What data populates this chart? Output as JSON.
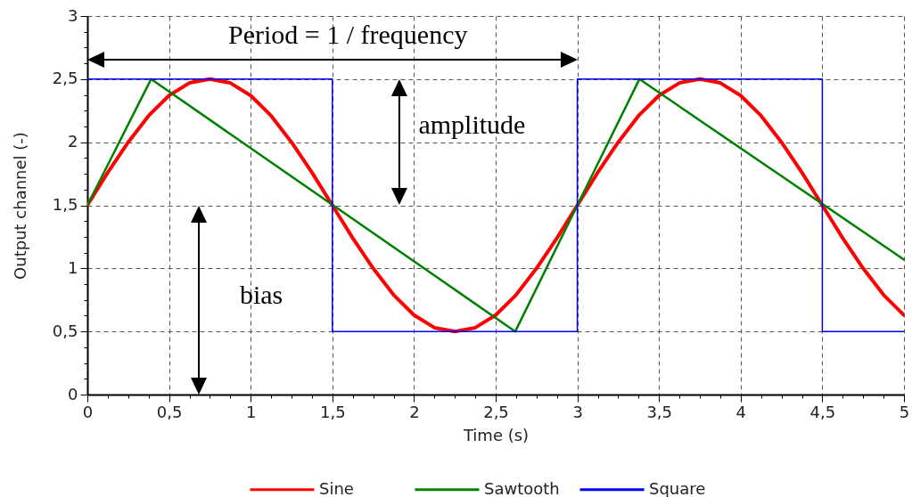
{
  "chart_data": {
    "type": "line",
    "xlabel": "Time (s)",
    "ylabel": "Output channel (-)",
    "annotations": [
      "Period = 1 / frequency",
      "amplitude",
      "bias"
    ],
    "xlim": [
      0,
      5
    ],
    "ylim": [
      0,
      3
    ],
    "xticks": [
      0,
      {
        "value": 0.125,
        "label": null
      },
      {
        "value": 0.25,
        "label": null
      },
      {
        "value": 0.375,
        "label": null
      },
      {
        "value": 0.5,
        "label": "0,5"
      },
      {
        "value": 0.625,
        "label": null
      },
      {
        "value": 0.75,
        "label": null
      },
      {
        "value": 0.875,
        "label": null
      },
      1,
      {
        "value": 1.125,
        "label": null
      },
      {
        "value": 1.25,
        "label": null
      },
      {
        "value": 1.375,
        "label": null
      },
      {
        "value": 1.5,
        "label": "1,5"
      },
      {
        "value": 1.625,
        "label": null
      },
      {
        "value": 1.75,
        "label": null
      },
      {
        "value": 1.875,
        "label": null
      },
      2,
      {
        "value": 2.125,
        "label": null
      },
      {
        "value": 2.25,
        "label": null
      },
      {
        "value": 2.375,
        "label": null
      },
      {
        "value": 2.5,
        "label": "2,5"
      },
      {
        "value": 2.625,
        "label": null
      },
      {
        "value": 2.75,
        "label": null
      },
      {
        "value": 2.875,
        "label": null
      },
      3,
      {
        "value": 3.125,
        "label": null
      },
      {
        "value": 3.25,
        "label": null
      },
      {
        "value": 3.375,
        "label": null
      },
      {
        "value": 3.5,
        "label": "3,5"
      },
      {
        "value": 3.625,
        "label": null
      },
      {
        "value": 3.75,
        "label": null
      },
      {
        "value": 3.875,
        "label": null
      },
      4,
      {
        "value": 4.125,
        "label": null
      },
      {
        "value": 4.25,
        "label": null
      },
      {
        "value": 4.375,
        "label": null
      },
      {
        "value": 4.5,
        "label": "4,5"
      },
      {
        "value": 4.625,
        "label": null
      },
      {
        "value": 4.75,
        "label": null
      },
      {
        "value": 4.875,
        "label": null
      },
      5
    ],
    "yticks": [
      0,
      {
        "value": 0.125,
        "label": null
      },
      {
        "value": 0.25,
        "label": null
      },
      {
        "value": 0.375,
        "label": null
      },
      {
        "value": 0.5,
        "label": "0,5"
      },
      {
        "value": 0.625,
        "label": null
      },
      {
        "value": 0.75,
        "label": null
      },
      {
        "value": 0.875,
        "label": null
      },
      1,
      {
        "value": 1.125,
        "label": null
      },
      {
        "value": 1.25,
        "label": null
      },
      {
        "value": 1.375,
        "label": null
      },
      {
        "value": 1.5,
        "label": "1,5"
      },
      {
        "value": 1.625,
        "label": null
      },
      {
        "value": 1.75,
        "label": null
      },
      {
        "value": 1.875,
        "label": null
      },
      2,
      {
        "value": 2.125,
        "label": null
      },
      {
        "value": 2.25,
        "label": null
      },
      {
        "value": 2.375,
        "label": null
      },
      {
        "value": 2.5,
        "label": "2,5"
      },
      {
        "value": 2.625,
        "label": null
      },
      {
        "value": 2.75,
        "label": null
      },
      {
        "value": 2.875,
        "label": null
      },
      3
    ],
    "grid": true,
    "legend": "bottom",
    "series": [
      {
        "name": "Sine",
        "color": "#ff0000",
        "x": [
          0,
          0.125,
          0.25,
          0.375,
          0.5,
          0.625,
          0.75,
          0.875,
          1,
          1.125,
          1.25,
          1.375,
          1.5,
          1.625,
          1.75,
          1.875,
          2,
          2.125,
          2.25,
          2.375,
          2.5,
          2.625,
          2.75,
          2.875,
          3,
          3.125,
          3.25,
          3.375,
          3.5,
          3.625,
          3.75,
          3.875,
          4,
          4.125,
          4.25,
          4.375,
          4.5,
          4.625,
          4.75,
          4.875,
          5
        ],
        "values": [
          1.5,
          1.76,
          2.0,
          2.21,
          2.37,
          2.47,
          2.5,
          2.47,
          2.37,
          2.21,
          2.0,
          1.76,
          1.5,
          1.24,
          1.0,
          0.79,
          0.63,
          0.53,
          0.5,
          0.53,
          0.63,
          0.79,
          1.0,
          1.24,
          1.5,
          1.76,
          2.0,
          2.21,
          2.37,
          2.47,
          2.5,
          2.47,
          2.37,
          2.21,
          2.0,
          1.76,
          1.5,
          1.24,
          1.0,
          0.79,
          0.63
        ]
      },
      {
        "name": "Sawtooth",
        "color": "#008000",
        "x": [
          0,
          0.39,
          2.62,
          3,
          3.38,
          5
        ],
        "values": [
          1.5,
          2.5,
          0.5,
          1.5,
          2.5,
          1.07
        ]
      },
      {
        "name": "Square",
        "color": "#0000ff",
        "type": "step",
        "x": [
          0,
          1.5,
          3,
          4.5,
          5
        ],
        "values": [
          2.5,
          0.5,
          2.5,
          0.5,
          0.5
        ]
      }
    ]
  }
}
